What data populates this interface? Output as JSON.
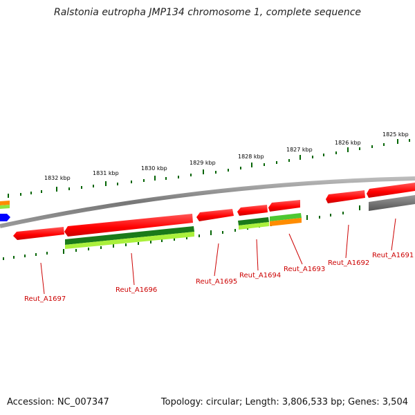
{
  "title": "Ralstonia eutropha JMP134 chromosome 1, complete sequence",
  "footer": {
    "accession": "Accession: NC_007347",
    "summary": "Topology: circular; Length: 3,806,533 bp; Genes: 3,504"
  },
  "colors": {
    "gene_red": "#ff0000",
    "gene_dark_green": "#1a7a1a",
    "gene_light_green": "#aaf03c",
    "gene_orange": "#ff8c00",
    "gene_gray": "#666666",
    "gene_blue": "#0000ff",
    "tick_green": "#006400",
    "backbone": "#888888",
    "label_red": "#cc0000"
  },
  "kbp_ticks": [
    {
      "label": "1832 kbp"
    },
    {
      "label": "1831 kbp"
    },
    {
      "label": "1830 kbp"
    },
    {
      "label": "1829 kbp"
    },
    {
      "label": "1828 kbp"
    },
    {
      "label": "1827 kbp"
    },
    {
      "label": "1826 kbp"
    },
    {
      "label": "1825 kbp"
    }
  ],
  "gene_labels": [
    {
      "label": "Reut_A1697"
    },
    {
      "label": "Reut_A1696"
    },
    {
      "label": "Reut_A1695"
    },
    {
      "label": "Reut_A1694"
    },
    {
      "label": "Reut_A1693"
    },
    {
      "label": "Reut_A1692"
    },
    {
      "label": "Reut_A1691"
    }
  ]
}
